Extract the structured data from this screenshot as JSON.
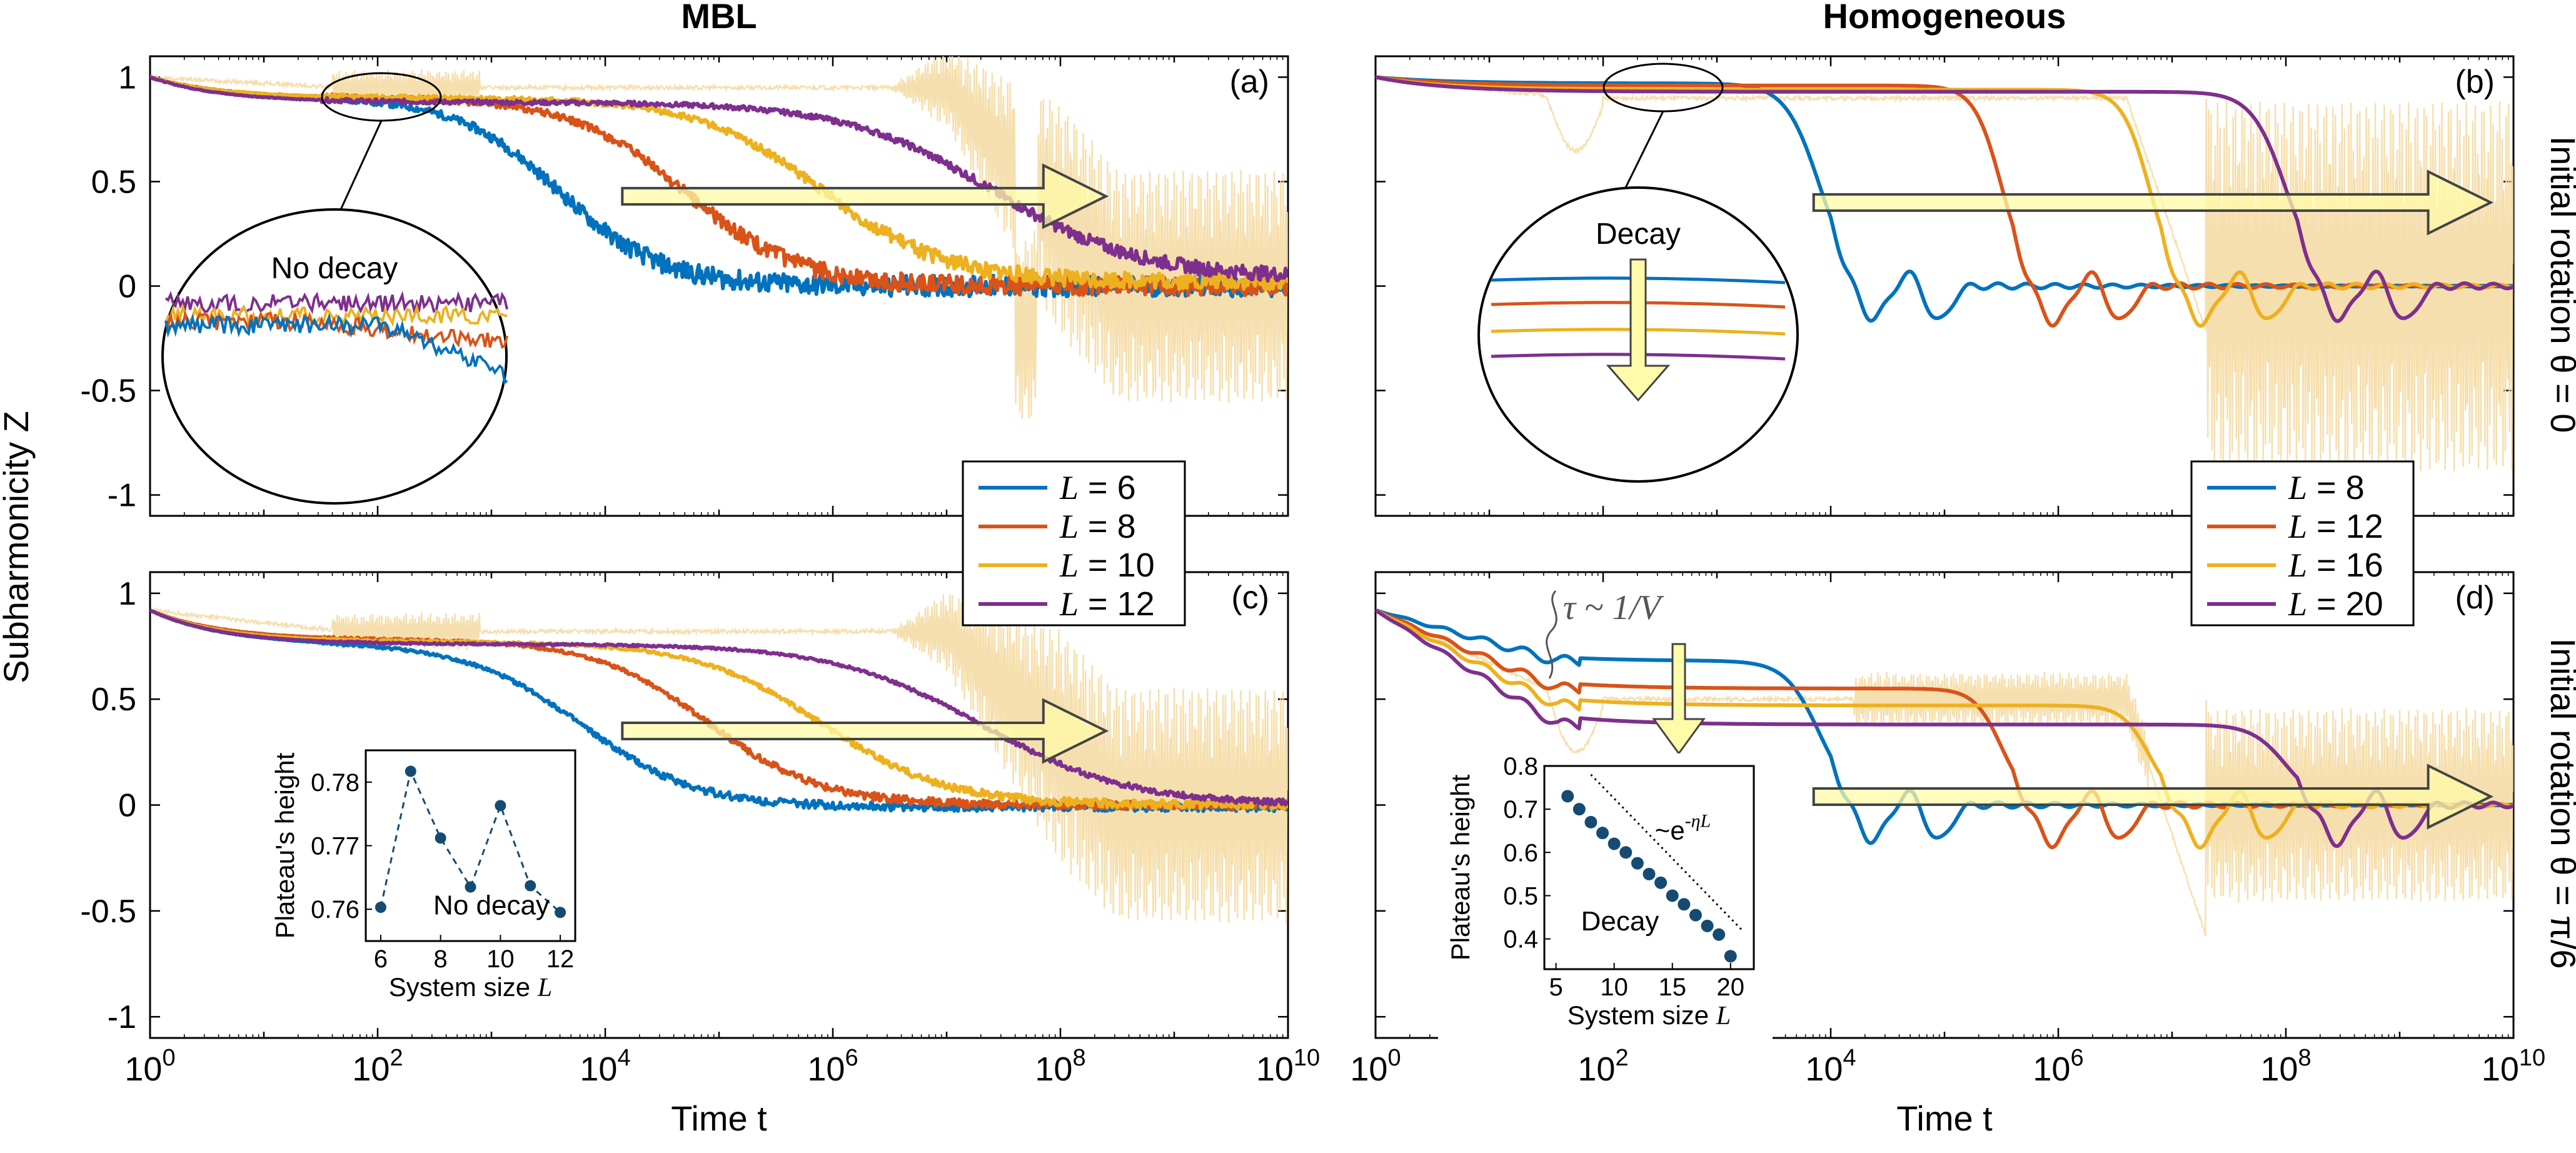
{
  "figure": {
    "columns": [
      "MBL",
      "Homogeneous"
    ],
    "row_labels": [
      "Initial rotation θ = 0",
      "Initial rotation θ = π/6"
    ],
    "ylabel": "Subharmonicity Z",
    "xlabel": "Time t",
    "xtick_labels": [
      "10^0",
      "10^2",
      "10^4",
      "10^6",
      "10^8",
      "10^10"
    ],
    "ytick_labels": [
      "1",
      "0.5",
      "0",
      "-0.5",
      "-1"
    ],
    "colors": {
      "blue": "#0072BD",
      "red": "#D95319",
      "yellow": "#EDB120",
      "purple": "#7E2F8E",
      "ref": "#F5D9A0",
      "arrow": "#FFFBA8"
    }
  },
  "chart_data": [
    {
      "id": "a",
      "panel_label": "(a)",
      "type": "line",
      "x_scale": "log10",
      "xlim": [
        0,
        10
      ],
      "ylim": [
        -1.1,
        1.1
      ],
      "legend": {
        "position": "bottom-right",
        "entries": [
          "L = 6",
          "L = 8",
          "L = 10",
          "L = 12"
        ]
      },
      "series": [
        {
          "name": "L = 6",
          "color": "blue",
          "plateau": 0.9,
          "decay_log10_t": 3.6,
          "width": 0.45,
          "end": 0.0,
          "noise": 0.05
        },
        {
          "name": "L = 8",
          "color": "red",
          "plateau": 0.9,
          "decay_log10_t": 4.7,
          "width": 0.5,
          "end": 0.0,
          "noise": 0.045
        },
        {
          "name": "L = 10",
          "color": "yellow",
          "plateau": 0.9,
          "decay_log10_t": 5.9,
          "width": 0.55,
          "end": 0.02,
          "noise": 0.04
        },
        {
          "name": "L = 12",
          "color": "purple",
          "plateau": 0.88,
          "decay_log10_t": 7.4,
          "width": 0.65,
          "end": 0.04,
          "noise": 0.035
        }
      ],
      "annotation": "No decay"
    },
    {
      "id": "b",
      "panel_label": "(b)",
      "type": "line",
      "x_scale": "log10",
      "xlim": [
        0,
        10
      ],
      "ylim": [
        -1.1,
        1.1
      ],
      "legend": {
        "position": "bottom-right",
        "entries": [
          "L = 8",
          "L = 12",
          "L = 16",
          "L = 20"
        ]
      },
      "series": [
        {
          "name": "L = 8",
          "color": "blue",
          "plateau": 0.97,
          "decay_log10_t": 3.9,
          "width": 0.15,
          "end": 0.0,
          "noise": 0.0
        },
        {
          "name": "L = 12",
          "color": "red",
          "plateau": 0.96,
          "decay_log10_t": 5.5,
          "width": 0.12,
          "end": 0.0,
          "noise": 0.0
        },
        {
          "name": "L = 16",
          "color": "yellow",
          "plateau": 0.94,
          "decay_log10_t": 6.8,
          "width": 0.12,
          "end": 0.0,
          "noise": 0.0
        },
        {
          "name": "L = 20",
          "color": "purple",
          "plateau": 0.93,
          "decay_log10_t": 8.0,
          "width": 0.15,
          "end": 0.0,
          "noise": 0.0
        }
      ],
      "annotation": "Decay"
    },
    {
      "id": "c",
      "panel_label": "(c)",
      "type": "line",
      "x_scale": "log10",
      "xlim": [
        0,
        10
      ],
      "ylim": [
        -1.1,
        1.1
      ],
      "series": [
        {
          "name": "L = 6",
          "color": "blue",
          "plateau": 0.76,
          "decay_log10_t": 3.8,
          "width": 0.5,
          "end": -0.01,
          "noise": 0.02
        },
        {
          "name": "L = 8",
          "color": "red",
          "plateau": 0.78,
          "decay_log10_t": 4.9,
          "width": 0.5,
          "end": 0.0,
          "noise": 0.02
        },
        {
          "name": "L = 10",
          "color": "yellow",
          "plateau": 0.77,
          "decay_log10_t": 5.9,
          "width": 0.55,
          "end": 0.0,
          "noise": 0.02
        },
        {
          "name": "L = 12",
          "color": "purple",
          "plateau": 0.76,
          "decay_log10_t": 7.3,
          "width": 0.65,
          "end": 0.0,
          "noise": 0.015
        }
      ],
      "inset": {
        "type": "scatter",
        "xlabel": "System size L",
        "ylabel": "Plateau's height",
        "x": [
          6,
          7,
          8,
          9,
          10,
          11,
          12
        ],
        "y": [
          0.7603,
          0.7817,
          0.7712,
          0.7635,
          0.7763,
          0.7637,
          0.7595
        ],
        "xlim": [
          5.5,
          12.5
        ],
        "ylim": [
          0.755,
          0.785
        ],
        "xticks": [
          "6",
          "8",
          "10",
          "12"
        ],
        "yticks": [
          "0.76",
          "0.77",
          "0.78"
        ],
        "annotation": "No decay"
      }
    },
    {
      "id": "d",
      "panel_label": "(d)",
      "type": "line",
      "x_scale": "log10",
      "xlim": [
        0,
        10
      ],
      "ylim": [
        -1.1,
        1.1
      ],
      "series": [
        {
          "name": "L = 8",
          "color": "blue",
          "plateau": 0.68,
          "decay_log10_t": 3.9,
          "width": 0.15,
          "end": 0.0,
          "noise": 0.0
        },
        {
          "name": "L = 12",
          "color": "red",
          "plateau": 0.55,
          "decay_log10_t": 5.5,
          "width": 0.12,
          "end": 0.0,
          "noise": 0.0
        },
        {
          "name": "L = 16",
          "color": "yellow",
          "plateau": 0.47,
          "decay_log10_t": 6.8,
          "width": 0.12,
          "end": 0.0,
          "noise": 0.0
        },
        {
          "name": "L = 20",
          "color": "purple",
          "plateau": 0.38,
          "decay_log10_t": 8.0,
          "width": 0.15,
          "end": 0.0,
          "noise": 0.0
        }
      ],
      "tau_annotation": "τ ~ 1/V",
      "inset": {
        "type": "scatter",
        "xlabel": "System size L",
        "ylabel": "Plateau's height",
        "x": [
          6,
          7,
          8,
          9,
          10,
          11,
          12,
          13,
          14,
          15,
          16,
          17,
          18,
          19,
          20
        ],
        "y": [
          0.73,
          0.7,
          0.67,
          0.645,
          0.62,
          0.6,
          0.575,
          0.55,
          0.53,
          0.5,
          0.48,
          0.455,
          0.43,
          0.41,
          0.36
        ],
        "xlim": [
          4,
          22
        ],
        "ylim": [
          0.33,
          0.8
        ],
        "xticks": [
          "5",
          "10",
          "15",
          "20"
        ],
        "yticks": [
          "0.4",
          "0.5",
          "0.6",
          "0.7",
          "0.8"
        ],
        "fit_label": "~e^-ηL",
        "annotation": "Decay"
      }
    }
  ]
}
